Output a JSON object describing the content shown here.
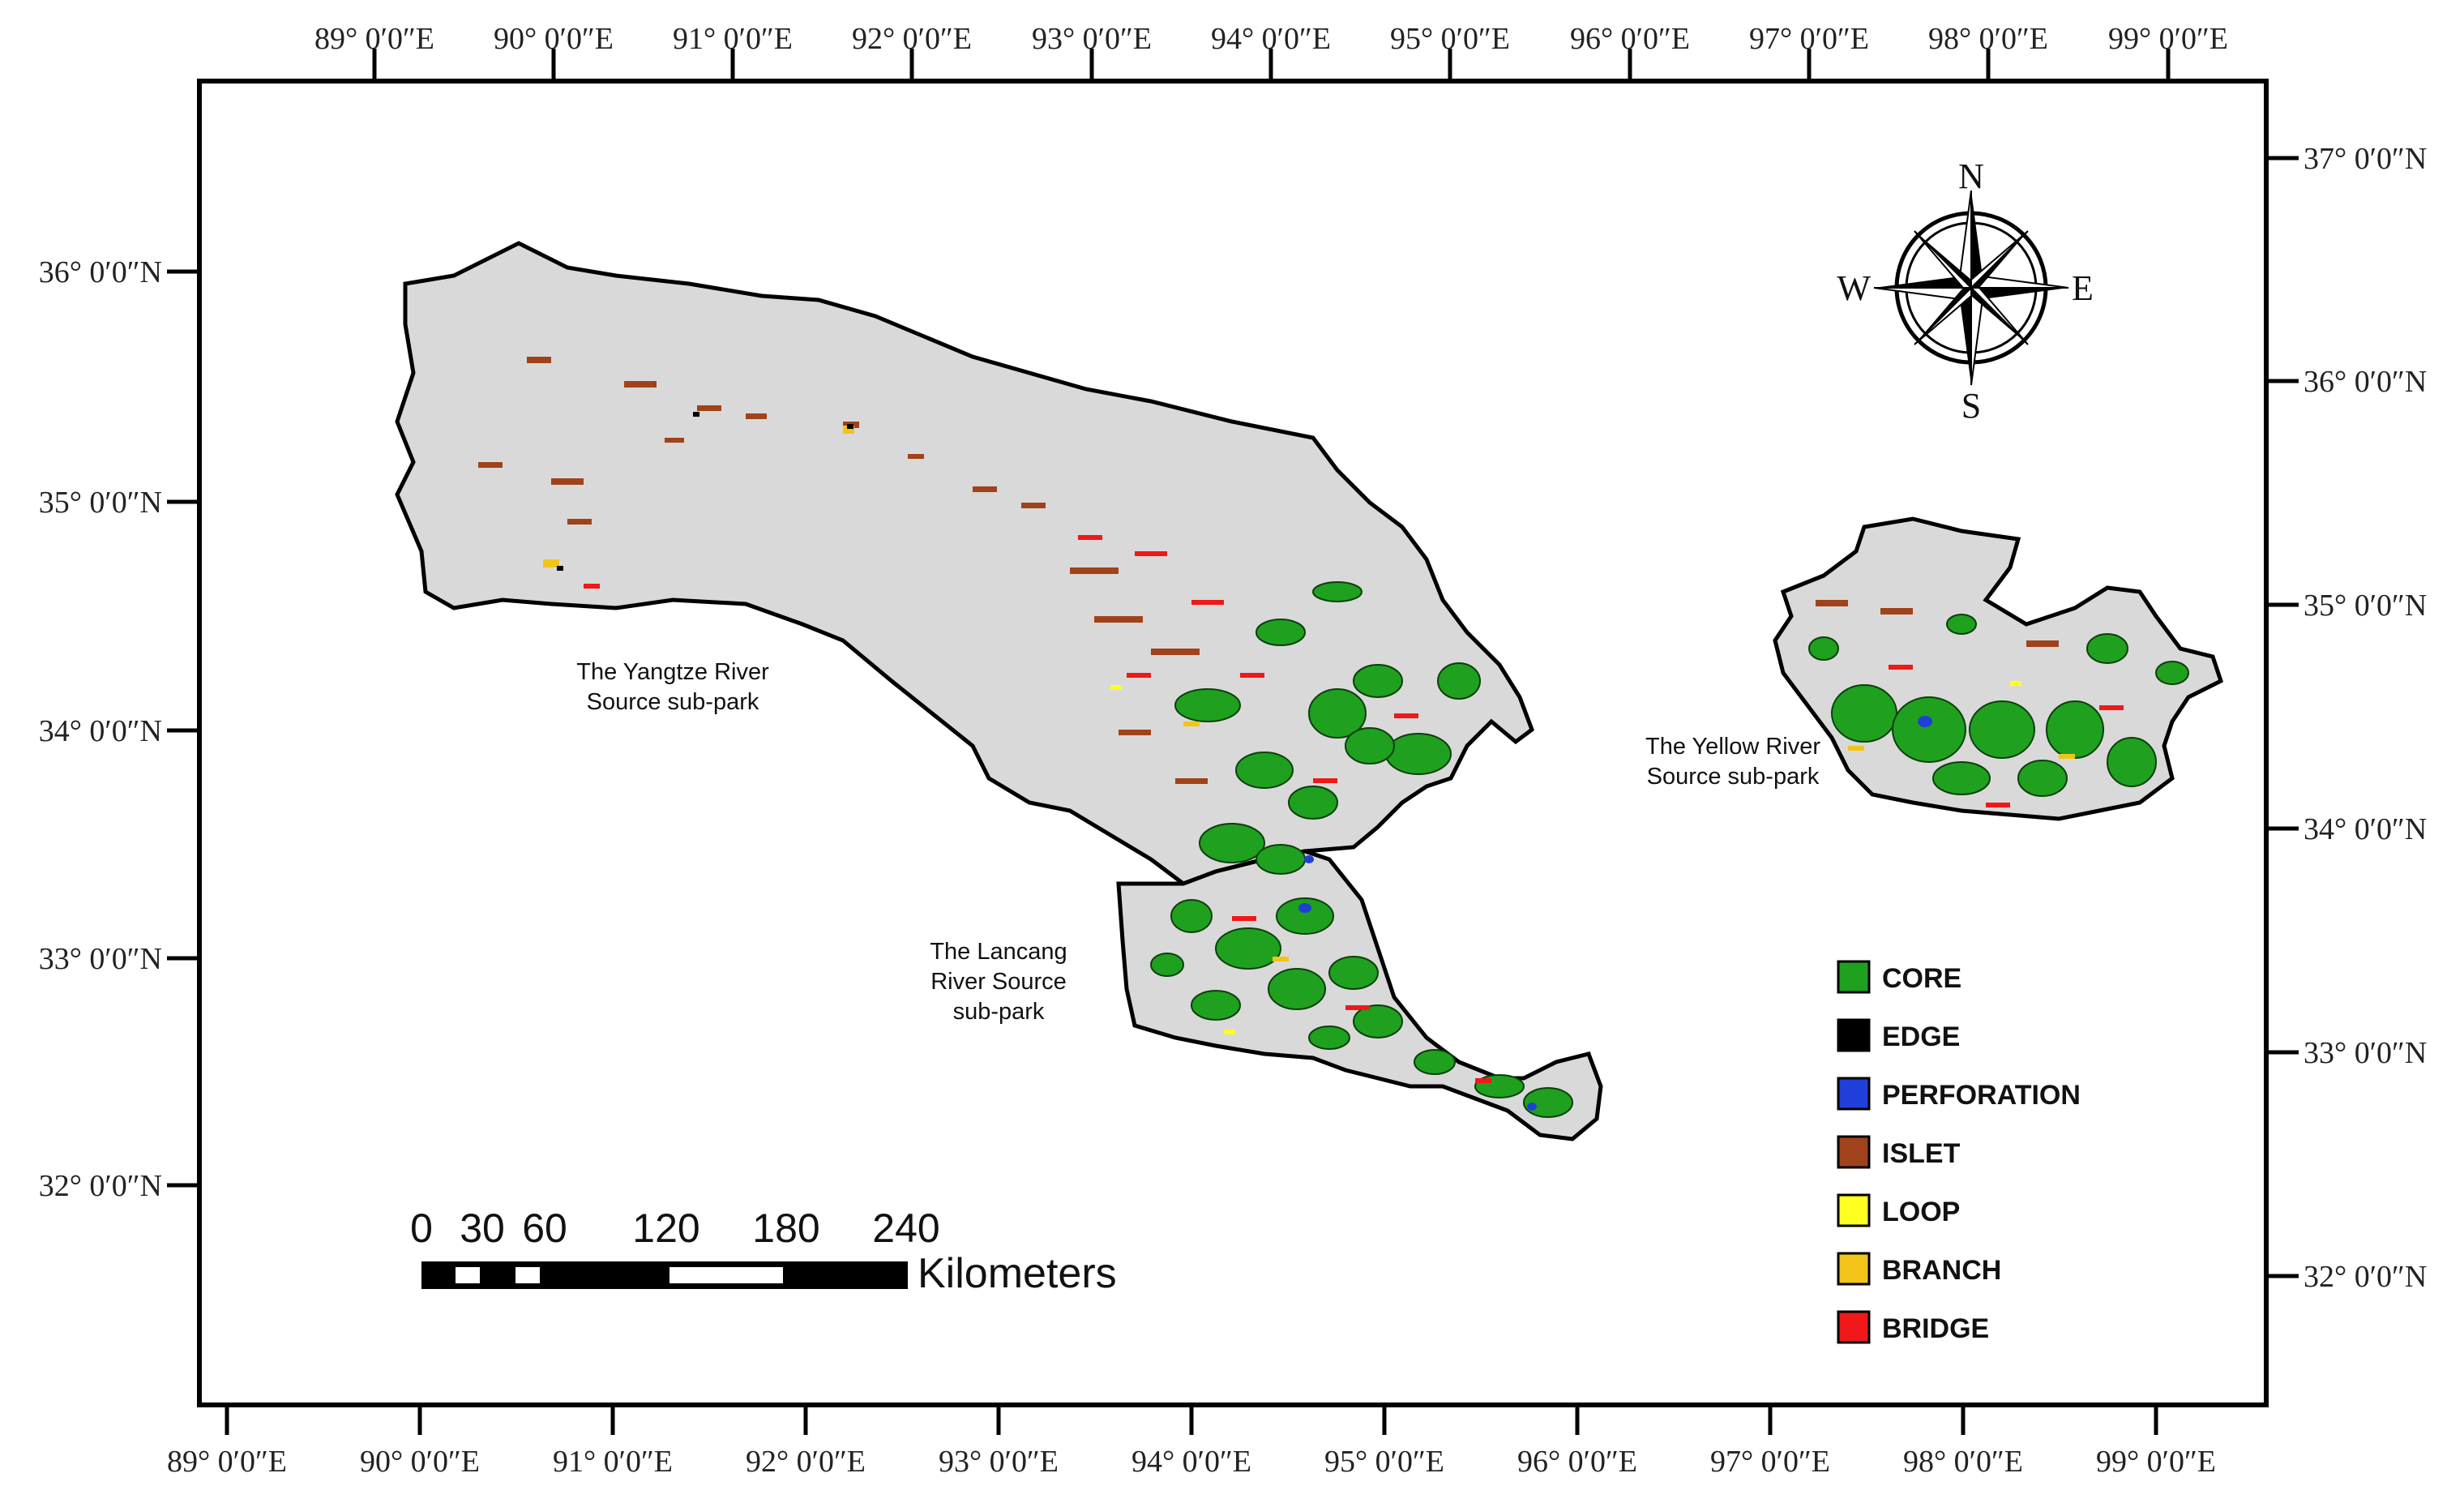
{
  "map": {
    "top_lon_labels": [
      "89° 0′0″E",
      "90° 0′0″E",
      "91° 0′0″E",
      "92° 0′0″E",
      "93° 0′0″E",
      "94° 0′0″E",
      "95° 0′0″E",
      "96° 0′0″E",
      "97° 0′0″E",
      "98° 0′0″E",
      "99° 0′0″E"
    ],
    "bottom_lon_labels": [
      "89° 0′0″E",
      "90° 0′0″E",
      "91° 0′0″E",
      "92° 0′0″E",
      "93° 0′0″E",
      "94° 0′0″E",
      "95° 0′0″E",
      "96° 0′0″E",
      "97° 0′0″E",
      "98° 0′0″E",
      "99° 0′0″E"
    ],
    "left_lat_labels": [
      "36° 0′0″N",
      "35° 0′0″N",
      "34° 0′0″N",
      "33° 0′0″N",
      "32° 0′0″N"
    ],
    "right_lat_labels": [
      "37° 0′0″N",
      "36° 0′0″N",
      "35° 0′0″N",
      "34° 0′0″N",
      "33° 0′0″N",
      "32° 0′0″N"
    ],
    "regions": {
      "yangtze": [
        "The Yangtze River",
        "Source sub-park"
      ],
      "lancang": [
        "The Lancang",
        "River Source",
        "sub-park"
      ],
      "yellow": [
        "The Yellow River",
        "Source sub-park"
      ]
    },
    "compass": {
      "n": "N",
      "s": "S",
      "e": "E",
      "w": "W"
    },
    "scale_bar": {
      "ticks": [
        "0",
        "30",
        "60",
        "120",
        "180",
        "240"
      ],
      "unit": "Kilometers"
    },
    "legend": [
      {
        "label": "CORE",
        "color": "#1fa01f"
      },
      {
        "label": "EDGE",
        "color": "#000000"
      },
      {
        "label": "PERFORATION",
        "color": "#1f3fd8"
      },
      {
        "label": "ISLET",
        "color": "#a0421a"
      },
      {
        "label": "LOOP",
        "color": "#ffff20"
      },
      {
        "label": "BRANCH",
        "color": "#f2c417"
      },
      {
        "label": "BRIDGE",
        "color": "#f01818"
      }
    ],
    "colors": {
      "background_land": "#d9d9d9",
      "frame": "#000000"
    }
  }
}
